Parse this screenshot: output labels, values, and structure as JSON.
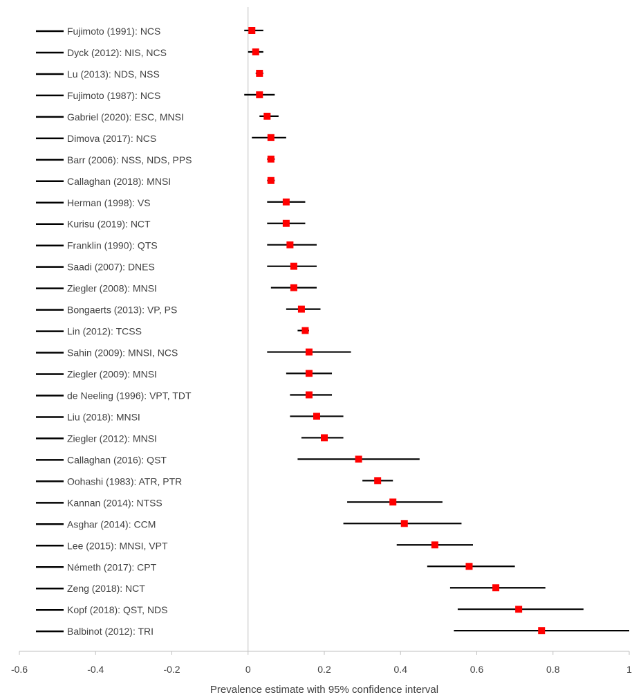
{
  "chart_data": {
    "type": "forest",
    "xlabel": "Prevalence estimate with 95% confidence interval",
    "xlim": [
      -0.6,
      1
    ],
    "xticks": [
      "-0.6",
      "-0.4",
      "-0.2",
      "0",
      "0.2",
      "0.4",
      "0.6",
      "0.8",
      "1"
    ],
    "xtick_values": [
      -0.6,
      -0.4,
      -0.2,
      0,
      0.2,
      0.4,
      0.6,
      0.8,
      1
    ],
    "reference_line": 0,
    "marker_color": "#ff0000",
    "ci_color": "#000000",
    "studies": [
      {
        "label": "Fujimoto (1991): NCS",
        "estimate": 0.01,
        "lower": -0.01,
        "upper": 0.04
      },
      {
        "label": "Dyck (2012): NIS, NCS",
        "estimate": 0.02,
        "lower": 0.0,
        "upper": 0.04
      },
      {
        "label": "Lu (2013): NDS, NSS",
        "estimate": 0.03,
        "lower": 0.02,
        "upper": 0.04
      },
      {
        "label": "Fujimoto (1987): NCS",
        "estimate": 0.03,
        "lower": -0.01,
        "upper": 0.07
      },
      {
        "label": "Gabriel (2020): ESC, MNSI",
        "estimate": 0.05,
        "lower": 0.03,
        "upper": 0.08
      },
      {
        "label": "Dimova (2017): NCS",
        "estimate": 0.06,
        "lower": 0.01,
        "upper": 0.1
      },
      {
        "label": "Barr (2006): NSS, NDS, PPS",
        "estimate": 0.06,
        "lower": 0.05,
        "upper": 0.07
      },
      {
        "label": "Callaghan (2018): MNSI",
        "estimate": 0.06,
        "lower": 0.05,
        "upper": 0.07
      },
      {
        "label": "Herman (1998): VS",
        "estimate": 0.1,
        "lower": 0.05,
        "upper": 0.15
      },
      {
        "label": "Kurisu (2019): NCT",
        "estimate": 0.1,
        "lower": 0.05,
        "upper": 0.15
      },
      {
        "label": "Franklin (1990): QTS",
        "estimate": 0.11,
        "lower": 0.05,
        "upper": 0.18
      },
      {
        "label": "Saadi (2007): DNES",
        "estimate": 0.12,
        "lower": 0.05,
        "upper": 0.18
      },
      {
        "label": "Ziegler (2008): MNSI",
        "estimate": 0.12,
        "lower": 0.06,
        "upper": 0.18
      },
      {
        "label": "Bongaerts (2013): VP, PS",
        "estimate": 0.14,
        "lower": 0.1,
        "upper": 0.19
      },
      {
        "label": "Lin (2012): TCSS",
        "estimate": 0.15,
        "lower": 0.13,
        "upper": 0.16
      },
      {
        "label": "Sahin (2009): MNSI, NCS",
        "estimate": 0.16,
        "lower": 0.05,
        "upper": 0.27
      },
      {
        "label": "Ziegler (2009): MNSI",
        "estimate": 0.16,
        "lower": 0.1,
        "upper": 0.22
      },
      {
        "label": "de Neeling (1996): VPT, TDT",
        "estimate": 0.16,
        "lower": 0.11,
        "upper": 0.22
      },
      {
        "label": "Liu (2018): MNSI",
        "estimate": 0.18,
        "lower": 0.11,
        "upper": 0.25
      },
      {
        "label": "Ziegler (2012): MNSI",
        "estimate": 0.2,
        "lower": 0.14,
        "upper": 0.25
      },
      {
        "label": "Callaghan (2016): QST",
        "estimate": 0.29,
        "lower": 0.13,
        "upper": 0.45
      },
      {
        "label": "Oohashi (1983): ATR, PTR",
        "estimate": 0.34,
        "lower": 0.3,
        "upper": 0.38
      },
      {
        "label": "Kannan (2014): NTSS",
        "estimate": 0.38,
        "lower": 0.26,
        "upper": 0.51
      },
      {
        "label": "Asghar (2014): CCM",
        "estimate": 0.41,
        "lower": 0.25,
        "upper": 0.56
      },
      {
        "label": "Lee (2015): MNSI, VPT",
        "estimate": 0.49,
        "lower": 0.39,
        "upper": 0.59
      },
      {
        "label": "Németh (2017): CPT",
        "estimate": 0.58,
        "lower": 0.47,
        "upper": 0.7
      },
      {
        "label": "Zeng (2018): NCT",
        "estimate": 0.65,
        "lower": 0.53,
        "upper": 0.78
      },
      {
        "label": "Kopf (2018): QST, NDS",
        "estimate": 0.71,
        "lower": 0.55,
        "upper": 0.88
      },
      {
        "label": "Balbinot (2012): TRI",
        "estimate": 0.77,
        "lower": 0.54,
        "upper": 1.0
      }
    ]
  }
}
